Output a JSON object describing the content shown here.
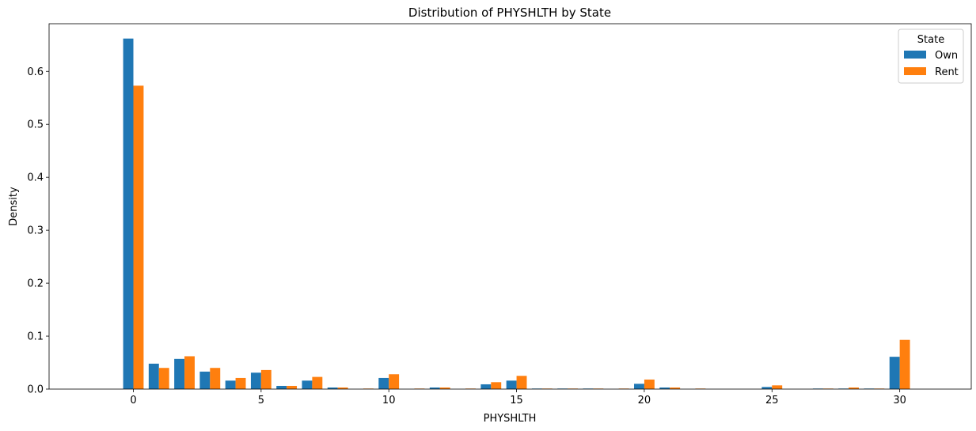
{
  "chart_data": {
    "type": "bar",
    "title": "Distribution of PHYSHLTH by State",
    "xlabel": "PHYSHLTH",
    "ylabel": "Density",
    "xlim": [
      -3.3,
      32.8
    ],
    "ylim": [
      0,
      0.69
    ],
    "xticks": [
      0,
      5,
      10,
      15,
      20,
      25,
      30
    ],
    "xtick_labels": [
      "0",
      "5",
      "10",
      "15",
      "20",
      "25",
      "30"
    ],
    "yticks": [
      0.0,
      0.1,
      0.2,
      0.3,
      0.4,
      0.5,
      0.6
    ],
    "ytick_labels": [
      "0.0",
      "0.1",
      "0.2",
      "0.3",
      "0.4",
      "0.5",
      "0.6"
    ],
    "grid": false,
    "legend": {
      "title": "State",
      "placement": "top-right"
    },
    "bin_width": 0.4,
    "x": [
      0,
      1,
      2,
      3,
      4,
      5,
      6,
      7,
      8,
      9,
      10,
      11,
      12,
      13,
      14,
      15,
      16,
      17,
      18,
      19,
      20,
      21,
      22,
      23,
      24,
      25,
      26,
      27,
      28,
      29,
      30
    ],
    "series": [
      {
        "name": "Own",
        "color": "#1f77b4",
        "values": [
          0.662,
          0.048,
          0.057,
          0.033,
          0.016,
          0.031,
          0.006,
          0.016,
          0.003,
          0,
          0.021,
          0,
          0.003,
          0,
          0.009,
          0.016,
          0.001,
          0.001,
          0.001,
          0,
          0.01,
          0.003,
          0,
          0,
          0,
          0.004,
          0,
          0.001,
          0.001,
          0.001,
          0.061
        ]
      },
      {
        "name": "Rent",
        "color": "#ff7f0e",
        "values": [
          0.573,
          0.04,
          0.062,
          0.04,
          0.021,
          0.036,
          0.006,
          0.023,
          0.003,
          0.001,
          0.028,
          0.001,
          0.003,
          0.001,
          0.013,
          0.025,
          0.001,
          0.001,
          0.001,
          0.001,
          0.018,
          0.003,
          0.001,
          0,
          0,
          0.007,
          0,
          0.001,
          0.003,
          0.001,
          0.093
        ]
      }
    ]
  }
}
